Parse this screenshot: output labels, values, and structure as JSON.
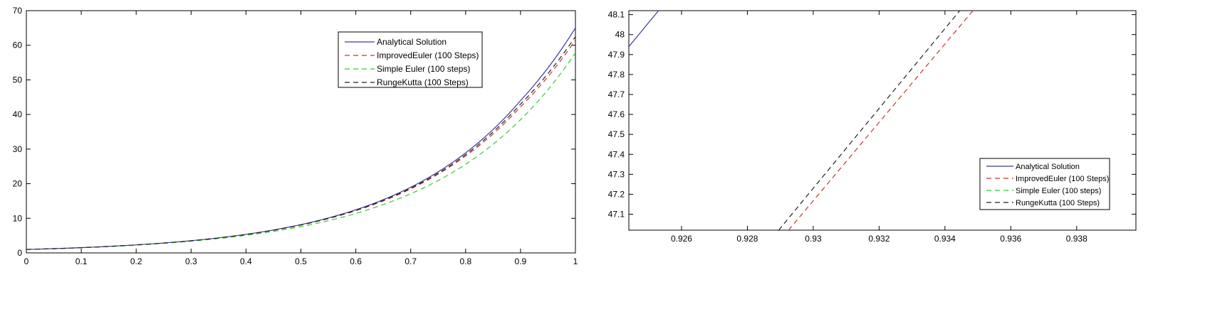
{
  "chart_data": [
    {
      "type": "line",
      "xlim": [
        0,
        1
      ],
      "ylim": [
        0,
        70
      ],
      "xticks": [
        "0",
        "0.1",
        "0.2",
        "0.3",
        "0.4",
        "0.5",
        "0.6",
        "0.7",
        "0.8",
        "0.9",
        "1"
      ],
      "yticks": [
        "0",
        "10",
        "20",
        "30",
        "40",
        "50",
        "60",
        "70"
      ],
      "grid": false,
      "legend_position": "top-right",
      "series": [
        {
          "name": "Analytical Solution",
          "color": "#3a3aa0",
          "style": "solid",
          "x": [
            0,
            0.1,
            0.2,
            0.3,
            0.4,
            0.5,
            0.6,
            0.7,
            0.8,
            0.9,
            1.0
          ],
          "y": [
            1.0,
            1.52,
            2.32,
            3.53,
            5.37,
            8.18,
            12.46,
            18.97,
            28.9,
            44.0,
            65.0
          ]
        },
        {
          "name": "ImprovedEuler (100 Steps)",
          "color": "#c0392b",
          "style": "dashed",
          "x": [
            0,
            0.1,
            0.2,
            0.3,
            0.4,
            0.5,
            0.6,
            0.7,
            0.8,
            0.9,
            1.0
          ],
          "y": [
            1.0,
            1.52,
            2.31,
            3.5,
            5.3,
            8.05,
            12.2,
            18.5,
            28.0,
            42.2,
            61.5
          ]
        },
        {
          "name": "Simple Euler (100 steps)",
          "color": "#33cc33",
          "style": "dashed",
          "x": [
            0,
            0.1,
            0.2,
            0.3,
            0.4,
            0.5,
            0.6,
            0.7,
            0.8,
            0.9,
            1.0
          ],
          "y": [
            1.0,
            1.5,
            2.26,
            3.38,
            5.08,
            7.6,
            11.4,
            17.1,
            25.6,
            38.5,
            57.8
          ]
        },
        {
          "name": "RungeKutta (100 Steps)",
          "color": "#222222",
          "style": "dashed",
          "x": [
            0,
            0.1,
            0.2,
            0.3,
            0.4,
            0.5,
            0.6,
            0.7,
            0.8,
            0.9,
            1.0
          ],
          "y": [
            1.0,
            1.52,
            2.31,
            3.51,
            5.33,
            8.1,
            12.3,
            18.7,
            28.4,
            43.0,
            62.5
          ]
        }
      ]
    },
    {
      "type": "line",
      "xlim": [
        0.9244,
        0.9398
      ],
      "ylim": [
        47.02,
        48.12
      ],
      "xticks": [
        "0.926",
        "0.928",
        "0.93",
        "0.932",
        "0.934",
        "0.936",
        "0.938"
      ],
      "xtick_values": [
        0.926,
        0.928,
        0.93,
        0.932,
        0.934,
        0.936,
        0.938
      ],
      "yticks": [
        "47.1",
        "47.2",
        "47.3",
        "47.4",
        "47.5",
        "47.6",
        "47.7",
        "47.8",
        "47.9",
        "48",
        "48.1"
      ],
      "ytick_values": [
        47.1,
        47.2,
        47.3,
        47.4,
        47.5,
        47.6,
        47.7,
        47.8,
        47.9,
        48.0,
        48.1
      ],
      "grid": false,
      "legend_position": "bottom-right",
      "series": [
        {
          "name": "Analytical Solution",
          "color": "#3a3aa0",
          "style": "solid",
          "x": [
            0.9244,
            0.9253
          ],
          "y": [
            47.94,
            48.12
          ]
        },
        {
          "name": "ImprovedEuler (100 Steps)",
          "color": "#c0392b",
          "style": "dashed",
          "x": [
            0.92925,
            0.93485
          ],
          "y": [
            47.02,
            48.12
          ]
        },
        {
          "name": "Simple Euler (100 steps)",
          "color": "#33cc33",
          "style": "dashed",
          "x": [],
          "y": []
        },
        {
          "name": "RungeKutta (100 Steps)",
          "color": "#222222",
          "style": "dashed",
          "x": [
            0.92895,
            0.93445
          ],
          "y": [
            47.02,
            48.12
          ]
        }
      ]
    }
  ]
}
